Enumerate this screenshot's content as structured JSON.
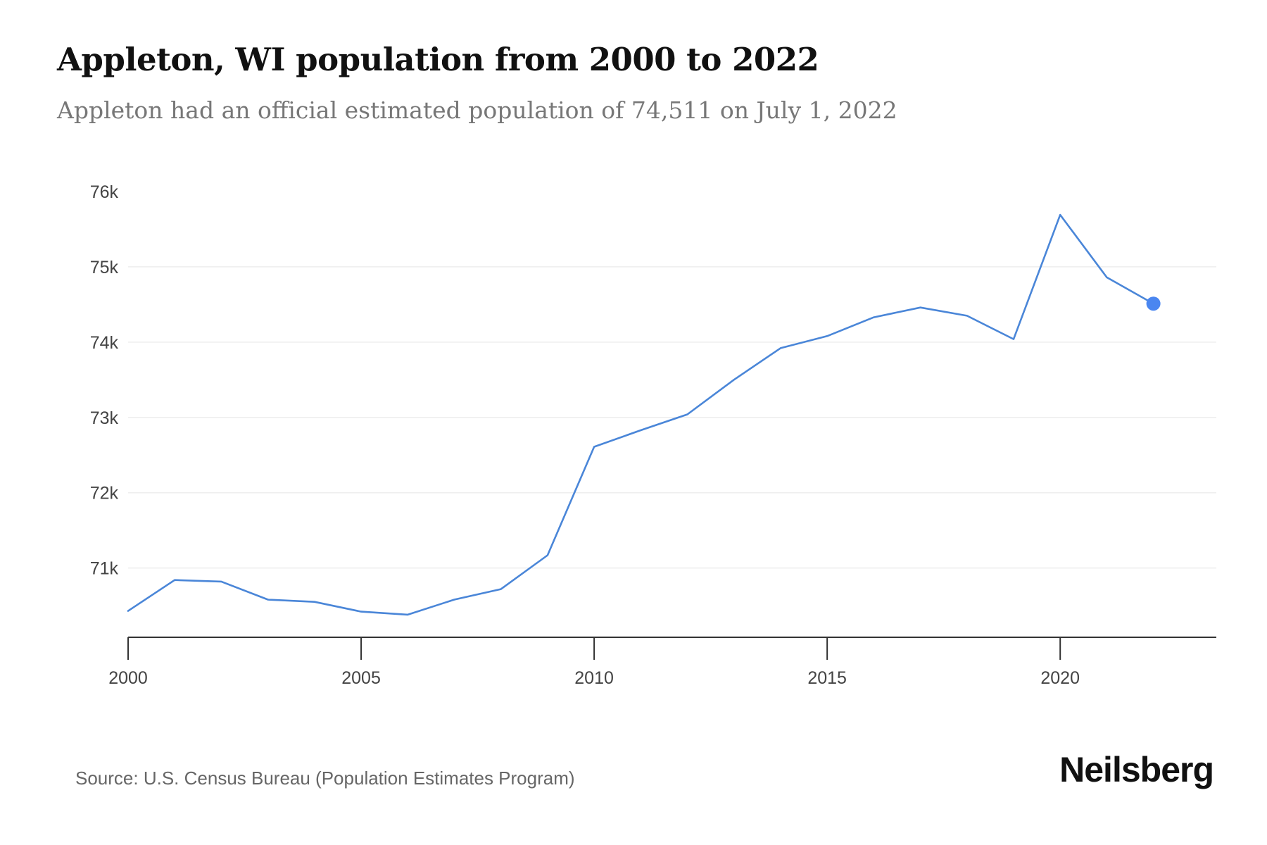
{
  "header": {
    "title": "Appleton, WI population from 2000 to 2022",
    "subtitle": "Appleton had an official estimated population of 74,511 on July 1, 2022"
  },
  "footer": {
    "source": "Source: U.S. Census Bureau (Population Estimates Program)",
    "brand": "Neilsberg"
  },
  "colors": {
    "line": "#4a86d8",
    "highlight": "#4a86f0",
    "grid": "#eeeeee",
    "axis": "#333333"
  },
  "chart_data": {
    "type": "line",
    "x": [
      2000,
      2001,
      2002,
      2003,
      2004,
      2005,
      2006,
      2007,
      2008,
      2009,
      2010,
      2011,
      2012,
      2013,
      2014,
      2015,
      2016,
      2017,
      2018,
      2019,
      2020,
      2021,
      2022
    ],
    "series": [
      {
        "values": [
          70430,
          70840,
          70820,
          70580,
          70550,
          70420,
          70380,
          70580,
          70720,
          71170,
          72610,
          72830,
          73040,
          73500,
          73920,
          74080,
          74330,
          74460,
          74350,
          74040,
          75690,
          74860,
          74511
        ]
      }
    ],
    "highlight_point": {
      "x": 2022,
      "y": 74511
    },
    "x_ticks": [
      2000,
      2005,
      2010,
      2015,
      2020
    ],
    "x_tick_labels": [
      "2000",
      "2005",
      "2010",
      "2015",
      "2020"
    ],
    "y_ticks": [
      71000,
      72000,
      73000,
      74000,
      75000,
      76000
    ],
    "y_tick_labels": [
      "71k",
      "72k",
      "73k",
      "74k",
      "75k",
      "76k"
    ],
    "xlim": [
      2000,
      2023.35
    ],
    "ylim": [
      70080,
      76000
    ],
    "grid": true,
    "title": "",
    "xlabel": "",
    "ylabel": ""
  }
}
